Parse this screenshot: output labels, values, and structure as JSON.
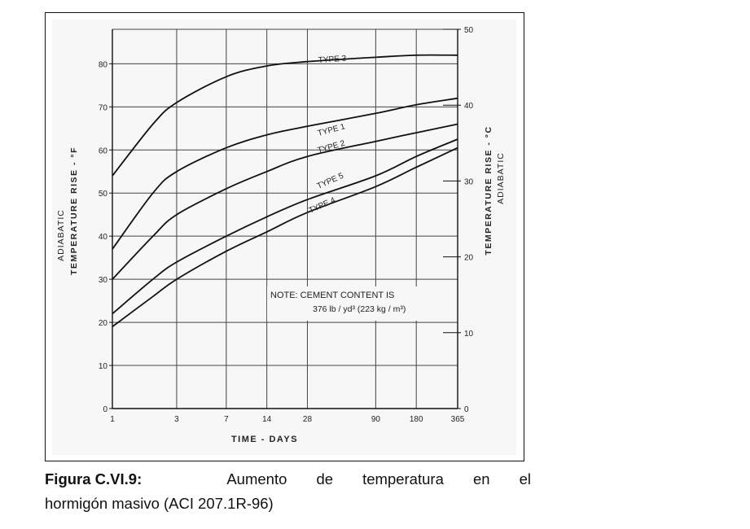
{
  "chart_data": {
    "type": "line",
    "x_scale": "log",
    "x_ticks": [
      "1",
      "3",
      "7",
      "14",
      "28",
      "90",
      "180",
      "365"
    ],
    "xlabel": "TIME - DAYS",
    "ylabel_left": [
      "ADIABATIC",
      "TEMPERATURE  RISE - °F"
    ],
    "ylabel_right": [
      "TEMPERATURE  RISE - °C",
      "ADIABATIC"
    ],
    "y_left_ticks": [
      "0",
      "10",
      "20",
      "30",
      "40",
      "50",
      "60",
      "70",
      "80"
    ],
    "y_right_ticks": [
      "0",
      "10",
      "20",
      "30",
      "40",
      "50"
    ],
    "ylim_left": [
      0,
      88
    ],
    "ylim_right": [
      0,
      50
    ],
    "grid": true,
    "x": [
      1,
      2,
      3,
      7,
      14,
      28,
      90,
      180,
      365
    ],
    "series": [
      {
        "name": "TYPE 3",
        "values": [
          54,
          66,
          71,
          77,
          79.5,
          80.5,
          81.5,
          82,
          82
        ]
      },
      {
        "name": "TYPE 1",
        "values": [
          37,
          50,
          55,
          60.5,
          63.5,
          65.5,
          68.5,
          70.5,
          72
        ]
      },
      {
        "name": "TYPE 2",
        "values": [
          30,
          40,
          45,
          51,
          55,
          58.5,
          62,
          64,
          66
        ]
      },
      {
        "name": "TYPE 5",
        "values": [
          22,
          30,
          34,
          40,
          44.5,
          48.5,
          54,
          58.5,
          62.5
        ]
      },
      {
        "name": "TYPE 4",
        "values": [
          19,
          26,
          30,
          36.5,
          41,
          45.5,
          51.5,
          56,
          60.5
        ]
      }
    ],
    "note_line1": "NOTE: CEMENT CONTENT IS",
    "note_line2": "376 lb / yd³ (223 kg / m³)"
  },
  "caption": {
    "label": "Figura C.VI.9:",
    "words": [
      "Aumento",
      "de",
      "temperatura",
      "en",
      "el"
    ],
    "line2": "hormigón masivo (ACI 207.1R-96)"
  }
}
